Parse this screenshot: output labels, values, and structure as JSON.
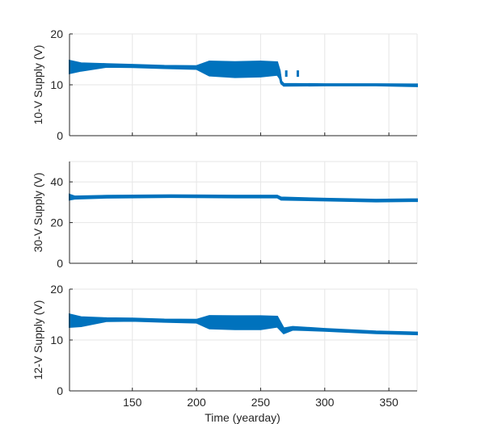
{
  "chart_data": [
    {
      "type": "line",
      "ylabel": "10-V Supply (V)",
      "xlim": [
        101,
        372
      ],
      "ylim": [
        0,
        20
      ],
      "yticks": [
        0,
        10,
        20
      ],
      "grid": true,
      "color": "#0072BD",
      "series": [
        {
          "x": [
            101,
            110,
            130,
            150,
            175,
            200,
            210,
            230,
            250,
            263,
            265,
            266,
            268,
            300,
            340,
            372
          ],
          "y": [
            13.5,
            13.5,
            13.8,
            13.7,
            13.5,
            13.4,
            13.2,
            13.0,
            13.1,
            13.2,
            12.0,
            10.5,
            10.0,
            10.0,
            10.0,
            9.9
          ],
          "band": [
            2.5,
            1.5,
            0.6,
            0.5,
            0.5,
            0.6,
            2.8,
            3.0,
            3.0,
            2.5,
            1.5,
            0.5,
            0.4,
            0.3,
            0.3,
            0.4
          ]
        }
      ],
      "outliers": {
        "x": [
          270,
          279
        ],
        "y": [
          12.2,
          12.2
        ]
      }
    },
    {
      "type": "line",
      "ylabel": "30-V Supply (V)",
      "xlim": [
        101,
        372
      ],
      "ylim": [
        0,
        50
      ],
      "yticks": [
        0,
        20,
        40
      ],
      "grid": true,
      "color": "#0072BD",
      "series": [
        {
          "x": [
            101,
            105,
            130,
            180,
            230,
            263,
            266,
            300,
            340,
            372
          ],
          "y": [
            32.5,
            32.3,
            32.7,
            33.0,
            32.8,
            32.8,
            31.8,
            31.3,
            30.8,
            31.0
          ],
          "band": [
            2.5,
            1.2,
            1.0,
            1.0,
            1.0,
            1.0,
            1.2,
            1.0,
            1.0,
            1.0
          ]
        }
      ]
    },
    {
      "type": "line",
      "ylabel": "12-V Supply (V)",
      "xlim": [
        101,
        372
      ],
      "ylim": [
        0,
        20
      ],
      "yticks": [
        0,
        10,
        20
      ],
      "grid": true,
      "color": "#0072BD",
      "series": [
        {
          "x": [
            101,
            110,
            130,
            150,
            175,
            200,
            210,
            230,
            250,
            263,
            268,
            275,
            300,
            340,
            372
          ],
          "y": [
            13.8,
            13.6,
            14.0,
            14.0,
            13.8,
            13.7,
            13.5,
            13.4,
            13.4,
            13.6,
            11.8,
            12.3,
            12.0,
            11.5,
            11.3
          ],
          "band": [
            2.5,
            1.8,
            0.6,
            0.5,
            0.5,
            0.6,
            2.5,
            2.6,
            2.6,
            2.0,
            1.0,
            0.6,
            0.4,
            0.4,
            0.4
          ]
        }
      ]
    }
  ],
  "x_axis": {
    "label": "Time (yearday)",
    "ticks": [
      150,
      200,
      250,
      300,
      350
    ]
  }
}
